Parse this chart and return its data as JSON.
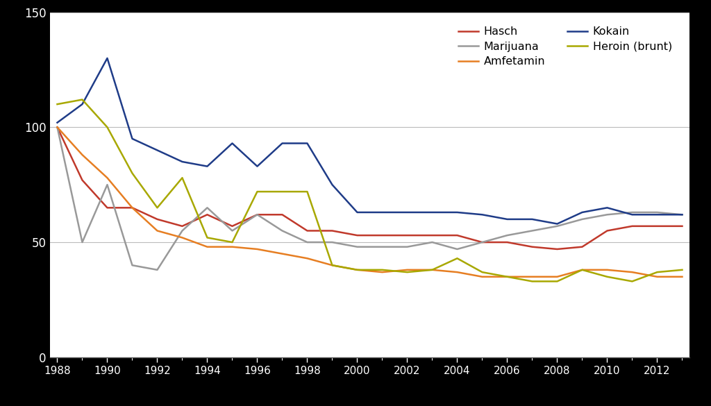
{
  "years": [
    1988,
    1989,
    1990,
    1991,
    1992,
    1993,
    1994,
    1995,
    1996,
    1997,
    1998,
    1999,
    2000,
    2001,
    2002,
    2003,
    2004,
    2005,
    2006,
    2007,
    2008,
    2009,
    2010,
    2011,
    2012,
    2013
  ],
  "hasch": [
    100,
    77,
    65,
    65,
    60,
    57,
    62,
    57,
    62,
    62,
    55,
    55,
    53,
    53,
    53,
    53,
    53,
    50,
    50,
    48,
    47,
    48,
    55,
    57,
    57,
    57
  ],
  "marijuana": [
    100,
    50,
    75,
    40,
    38,
    55,
    65,
    55,
    62,
    55,
    50,
    50,
    48,
    48,
    48,
    50,
    47,
    50,
    53,
    55,
    57,
    60,
    62,
    63,
    63,
    62
  ],
  "amfetamin": [
    100,
    88,
    78,
    65,
    55,
    52,
    48,
    48,
    47,
    45,
    43,
    40,
    38,
    37,
    38,
    38,
    37,
    35,
    35,
    35,
    35,
    38,
    38,
    37,
    35,
    35
  ],
  "kokain": [
    102,
    110,
    130,
    95,
    90,
    85,
    83,
    93,
    83,
    93,
    93,
    75,
    63,
    63,
    63,
    63,
    63,
    62,
    60,
    60,
    58,
    63,
    65,
    62,
    62,
    62
  ],
  "heroin": [
    110,
    112,
    100,
    80,
    65,
    78,
    52,
    50,
    72,
    72,
    72,
    40,
    38,
    38,
    37,
    38,
    43,
    37,
    35,
    33,
    33,
    38,
    35,
    33,
    37,
    38
  ],
  "series_colors": {
    "hasch": "#c0392b",
    "marijuana": "#999999",
    "amfetamin": "#e67e22",
    "kokain": "#1f3c88",
    "heroin": "#a8a800"
  },
  "series_labels": {
    "hasch": "Hasch",
    "marijuana": "Marijuana",
    "amfetamin": "Amfetamin",
    "kokain": "Kokain",
    "heroin": "Heroin (brunt)"
  },
  "legend_order": [
    "hasch",
    "marijuana",
    "amfetamin",
    "kokain",
    "heroin"
  ],
  "ylim": [
    0,
    150
  ],
  "yticks": [
    0,
    50,
    100,
    150
  ],
  "xlim": [
    1988,
    2013
  ],
  "xticks_major": [
    1988,
    1990,
    1992,
    1994,
    1996,
    1998,
    2000,
    2002,
    2004,
    2006,
    2008,
    2010,
    2012
  ],
  "xticks_minor": [
    1988,
    1989,
    1990,
    1991,
    1992,
    1993,
    1994,
    1995,
    1996,
    1997,
    1998,
    1999,
    2000,
    2001,
    2002,
    2003,
    2004,
    2005,
    2006,
    2007,
    2008,
    2009,
    2010,
    2011,
    2012,
    2013
  ],
  "background_color": "#000000",
  "plot_background": "#ffffff",
  "grid_color": "#bbbbbb",
  "linewidth": 1.8,
  "tick_color": "#ffffff",
  "spine_color": "#555555"
}
